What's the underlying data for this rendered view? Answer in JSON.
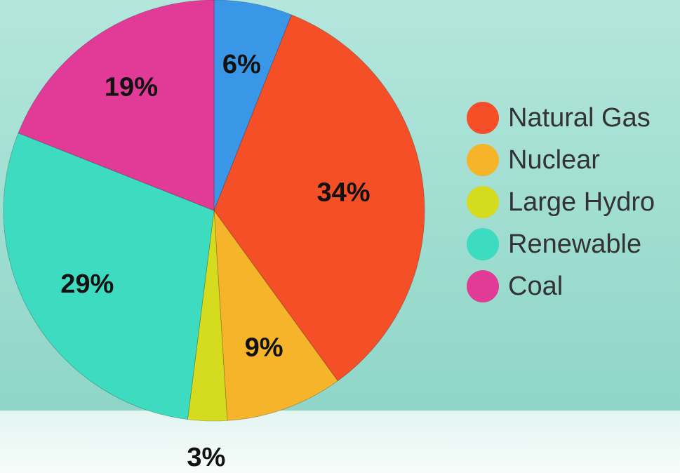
{
  "chart_data": {
    "type": "pie",
    "categories": [
      null,
      "Natural Gas",
      "Nuclear",
      "Large Hydro",
      "Renewable",
      "Coal"
    ],
    "values": [
      6,
      34,
      9,
      3,
      29,
      19
    ],
    "value_labels": [
      "6%",
      "34%",
      "9%",
      "3%",
      "29%",
      "19%"
    ],
    "colors": [
      "#3a97e8",
      "#f54f27",
      "#f5b42a",
      "#d5dc1f",
      "#3ddbc0",
      "#e23a97"
    ],
    "legend": "right"
  }
}
